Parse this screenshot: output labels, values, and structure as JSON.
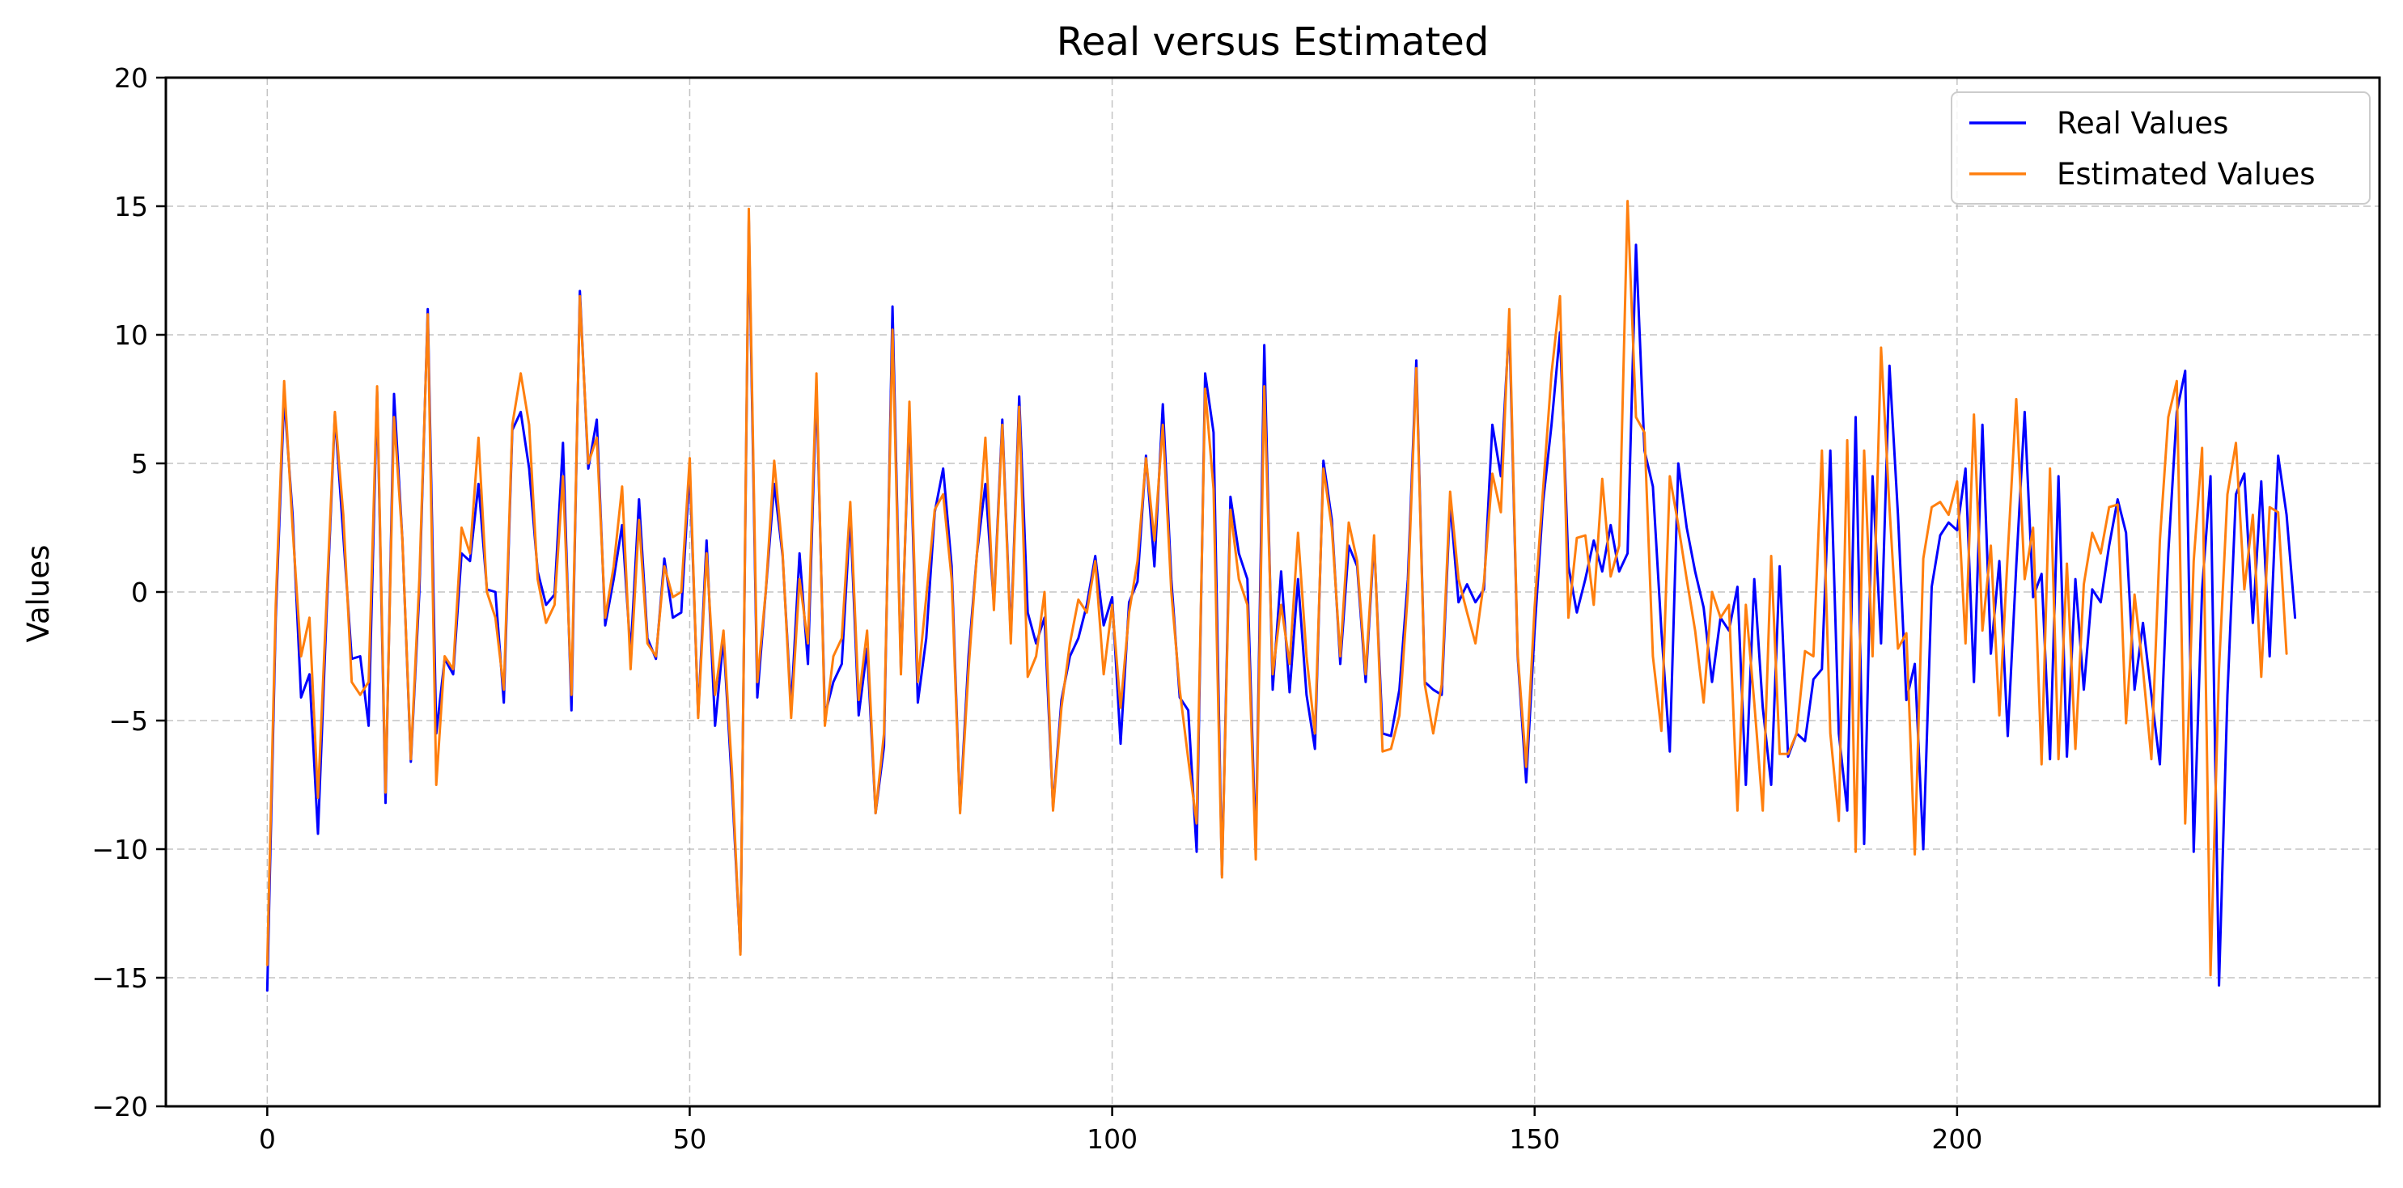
{
  "chart_data": {
    "type": "line",
    "title": "Real versus Estimated",
    "xlabel": "",
    "ylabel": "Values",
    "xlim": [
      -12,
      250
    ],
    "ylim": [
      -20,
      20
    ],
    "xticks": [
      0,
      50,
      100,
      150,
      200
    ],
    "yticks": [
      -20,
      -15,
      -10,
      -5,
      0,
      5,
      10,
      15,
      20
    ],
    "grid": true,
    "legend_position": "top-right",
    "x_start": 0,
    "series": [
      {
        "name": "Real Values",
        "color": "#0000ff",
        "values": [
          -15.5,
          -1.0,
          7.6,
          3.0,
          -4.1,
          -3.2,
          -9.4,
          -1.0,
          6.9,
          2.2,
          -2.6,
          -2.5,
          -5.2,
          7.8,
          -8.2,
          7.7,
          2.0,
          -6.6,
          0.0,
          11.0,
          -5.5,
          -2.6,
          -3.2,
          1.5,
          1.2,
          4.2,
          0.1,
          0.0,
          -4.3,
          6.3,
          7.0,
          4.8,
          0.8,
          -0.5,
          -0.1,
          5.8,
          -4.6,
          11.7,
          4.8,
          6.7,
          -1.3,
          0.5,
          2.6,
          -2.4,
          3.6,
          -1.8,
          -2.6,
          1.3,
          -1.0,
          -0.8,
          4.8,
          -4.8,
          2.0,
          -5.2,
          -1.8,
          -7.5,
          -14.0,
          14.5,
          -4.1,
          0.0,
          4.2,
          1.4,
          -4.5,
          1.5,
          -2.8,
          8.0,
          -4.8,
          -3.5,
          -2.8,
          3.0,
          -4.8,
          -2.2,
          -8.6,
          -6.0,
          11.1,
          -3.0,
          7.0,
          -4.3,
          -1.8,
          3.1,
          4.8,
          1.0,
          -8.5,
          -2.5,
          1.5,
          4.2,
          -0.5,
          6.7,
          -1.8,
          7.6,
          -0.8,
          -2.0,
          -1.0,
          -8.4,
          -4.2,
          -2.5,
          -1.8,
          -0.5,
          1.4,
          -1.3,
          -0.2,
          -5.9,
          -0.4,
          0.4,
          5.3,
          1.0,
          7.3,
          0.5,
          -4.1,
          -4.6,
          -10.1,
          8.5,
          6.2,
          -11.0,
          3.7,
          1.5,
          0.5,
          -10.0,
          9.6,
          -3.8,
          0.8,
          -3.9,
          0.5,
          -4.0,
          -6.1,
          5.1,
          2.8,
          -2.8,
          1.8,
          1.0,
          -3.5,
          2.0,
          -5.5,
          -5.6,
          -3.8,
          0.5,
          9.0,
          -3.5,
          -3.8,
          -4.0,
          3.5,
          -0.4,
          0.3,
          -0.4,
          0.1,
          6.5,
          4.5,
          10.5,
          -2.5,
          -7.4,
          -1.5,
          3.5,
          6.5,
          10.1,
          1.0,
          -0.8,
          0.5,
          2.0,
          0.8,
          2.6,
          0.8,
          1.5,
          13.5,
          5.5,
          4.1,
          -1.5,
          -6.2,
          5.0,
          2.5,
          0.8,
          -0.6,
          -3.5,
          -1.0,
          -1.5,
          0.2,
          -7.5,
          0.5,
          -4.5,
          -7.5,
          1.0,
          -6.4,
          -5.5,
          -5.8,
          -3.4,
          -3.0,
          5.5,
          -5.5,
          -8.5,
          6.8,
          -9.8,
          4.5,
          -2.0,
          8.8,
          3.0,
          -4.2,
          -2.8,
          -10.0,
          0.2,
          2.2,
          2.7,
          2.4,
          4.8,
          -3.5,
          6.5,
          -2.4,
          1.2,
          -5.6,
          1.0,
          7.0,
          -0.2,
          0.7,
          -6.5,
          4.5,
          -6.4,
          0.5,
          -3.8,
          0.1,
          -0.4,
          1.8,
          3.6,
          2.3,
          -3.8,
          -1.2,
          -4.0,
          -6.7,
          1.5,
          7.0,
          8.6,
          -10.1,
          0.1,
          4.5,
          -15.3,
          -4.0,
          3.8,
          4.6,
          -1.2,
          4.3,
          -2.5,
          5.3,
          3.0,
          -1.0
        ]
      },
      {
        "name": "Estimated Values",
        "color": "#ff7f0e",
        "values": [
          -14.5,
          -0.5,
          8.2,
          2.5,
          -2.5,
          -1.0,
          -8.0,
          -0.5,
          7.0,
          3.0,
          -3.5,
          -4.0,
          -3.5,
          8.0,
          -7.8,
          6.8,
          2.0,
          -6.5,
          0.5,
          10.8,
          -7.5,
          -2.5,
          -3.0,
          2.5,
          1.5,
          6.0,
          0.0,
          -1.0,
          -3.8,
          6.5,
          8.5,
          6.5,
          0.5,
          -1.2,
          -0.5,
          4.5,
          -4.0,
          11.5,
          5.0,
          6.0,
          -1.0,
          1.0,
          4.1,
          -3.0,
          2.8,
          -2.0,
          -2.5,
          1.0,
          -0.2,
          0.0,
          5.2,
          -4.9,
          1.5,
          -4.0,
          -1.5,
          -7.0,
          -14.1,
          14.9,
          -3.5,
          0.0,
          5.1,
          1.5,
          -4.9,
          0.5,
          -2.0,
          8.5,
          -5.2,
          -2.5,
          -1.8,
          3.5,
          -4.2,
          -1.5,
          -8.6,
          -5.5,
          10.2,
          -3.2,
          7.4,
          -3.5,
          -0.2,
          3.2,
          3.8,
          0.5,
          -8.6,
          -3.0,
          1.5,
          6.0,
          -0.7,
          6.5,
          -2.0,
          7.2,
          -3.3,
          -2.5,
          0.0,
          -8.5,
          -4.5,
          -2.0,
          -0.3,
          -0.8,
          1.2,
          -3.2,
          -0.5,
          -4.5,
          -0.8,
          1.2,
          5.2,
          2.0,
          6.5,
          0.0,
          -3.8,
          -6.5,
          -9.0,
          7.9,
          4.0,
          -11.1,
          3.2,
          0.5,
          -0.5,
          -10.4,
          8.0,
          -3.2,
          -0.5,
          -2.8,
          2.3,
          -2.5,
          -5.5,
          4.8,
          2.5,
          -2.5,
          2.7,
          1.2,
          -3.2,
          2.2,
          -6.2,
          -6.1,
          -4.8,
          0.0,
          8.7,
          -3.6,
          -5.5,
          -3.6,
          3.9,
          0.5,
          -0.8,
          -2.0,
          0.4,
          4.6,
          3.1,
          11.0,
          -2.4,
          -6.8,
          -0.6,
          4.0,
          8.5,
          11.5,
          -1.0,
          2.1,
          2.2,
          -0.5,
          4.4,
          0.6,
          1.8,
          15.2,
          6.8,
          6.2,
          -2.5,
          -5.4,
          4.5,
          2.6,
          0.5,
          -1.5,
          -4.3,
          0.0,
          -1.0,
          -0.5,
          -8.5,
          -0.5,
          -4.3,
          -8.5,
          1.4,
          -6.3,
          -6.3,
          -5.5,
          -2.3,
          -2.5,
          5.5,
          -5.5,
          -8.9,
          5.9,
          -10.1,
          5.5,
          -2.5,
          9.5,
          3.3,
          -2.2,
          -1.6,
          -10.2,
          1.3,
          3.3,
          3.5,
          3.0,
          4.3,
          -2.0,
          6.9,
          -1.5,
          1.8,
          -4.8,
          1.5,
          7.5,
          0.5,
          2.5,
          -6.7,
          4.8,
          -6.5,
          1.1,
          -6.1,
          0.3,
          2.3,
          1.5,
          3.3,
          3.4,
          -5.1,
          -0.1,
          -3.0,
          -6.5,
          2.0,
          6.8,
          8.2,
          -9.0,
          1.2,
          5.6,
          -14.9,
          -3.0,
          3.8,
          5.8,
          0.1,
          3.0,
          -3.3,
          3.3,
          3.1,
          -2.4
        ]
      }
    ]
  }
}
